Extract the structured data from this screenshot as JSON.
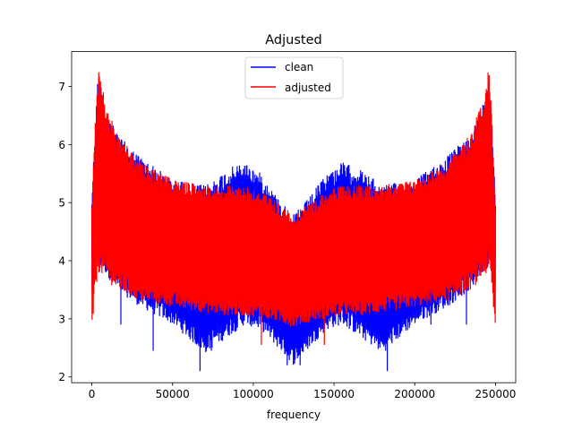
{
  "chart_data": {
    "type": "line",
    "title": "Adjusted",
    "xlabel": "frequency",
    "ylabel": "",
    "xlim": [
      -12500,
      262500
    ],
    "ylim": [
      1.9,
      7.6
    ],
    "xticks": [
      0,
      50000,
      100000,
      150000,
      200000,
      250000
    ],
    "xtick_labels": [
      "0",
      "50000",
      "100000",
      "150000",
      "200000",
      "250000"
    ],
    "yticks": [
      2,
      3,
      4,
      5,
      6,
      7
    ],
    "ytick_labels": [
      "2",
      "3",
      "4",
      "5",
      "6",
      "7"
    ],
    "grid": false,
    "legend_position": "top-center",
    "series": [
      {
        "name": "clean",
        "color": "#0000ff",
        "x": [
          0,
          2000,
          4000,
          8000,
          15000,
          30000,
          50000,
          70000,
          85000,
          95000,
          105000,
          115000,
          125000,
          135000,
          145000,
          155000,
          165000,
          180000,
          200000,
          220000,
          235000,
          242000,
          246000,
          248000,
          250000
        ],
        "upper": [
          5.1,
          6.3,
          7.3,
          6.7,
          6.2,
          5.8,
          5.4,
          5.3,
          5.6,
          5.7,
          5.5,
          5.1,
          4.8,
          5.1,
          5.5,
          5.7,
          5.6,
          5.3,
          5.4,
          5.8,
          6.2,
          6.7,
          7.3,
          6.3,
          5.1
        ],
        "lower": [
          3.4,
          3.8,
          3.9,
          3.8,
          3.5,
          3.2,
          2.9,
          2.4,
          2.7,
          2.9,
          2.8,
          2.5,
          2.2,
          2.5,
          2.8,
          2.9,
          2.7,
          2.4,
          2.9,
          3.2,
          3.5,
          3.8,
          3.9,
          3.8,
          3.4
        ],
        "dips": [
          [
            18000,
            2.9
          ],
          [
            38000,
            2.45
          ],
          [
            67000,
            2.1
          ],
          [
            74000,
            2.45
          ],
          [
            98000,
            2.9
          ],
          [
            121000,
            2.2
          ],
          [
            129000,
            2.2
          ],
          [
            183000,
            2.1
          ],
          [
            210000,
            2.9
          ],
          [
            232000,
            2.9
          ]
        ]
      },
      {
        "name": "adjusted",
        "color": "#ff0000",
        "x": [
          0,
          2000,
          4000,
          8000,
          15000,
          30000,
          50000,
          70000,
          85000,
          95000,
          105000,
          115000,
          125000,
          135000,
          145000,
          155000,
          165000,
          180000,
          200000,
          220000,
          235000,
          242000,
          246000,
          248000,
          250000
        ],
        "upper": [
          5.0,
          6.3,
          7.4,
          6.8,
          6.2,
          5.7,
          5.4,
          5.3,
          5.3,
          5.3,
          5.2,
          5.0,
          4.8,
          5.0,
          5.2,
          5.3,
          5.3,
          5.3,
          5.4,
          5.7,
          6.2,
          6.8,
          7.4,
          6.3,
          5.0
        ],
        "lower": [
          2.7,
          3.4,
          3.8,
          3.7,
          3.5,
          3.3,
          3.2,
          3.1,
          3.05,
          3.05,
          3.0,
          2.95,
          2.85,
          2.95,
          3.0,
          3.05,
          3.05,
          3.1,
          3.2,
          3.3,
          3.5,
          3.7,
          3.8,
          3.4,
          2.7
        ],
        "dips": [
          [
            105000,
            2.55
          ],
          [
            144000,
            2.55
          ]
        ]
      }
    ]
  }
}
